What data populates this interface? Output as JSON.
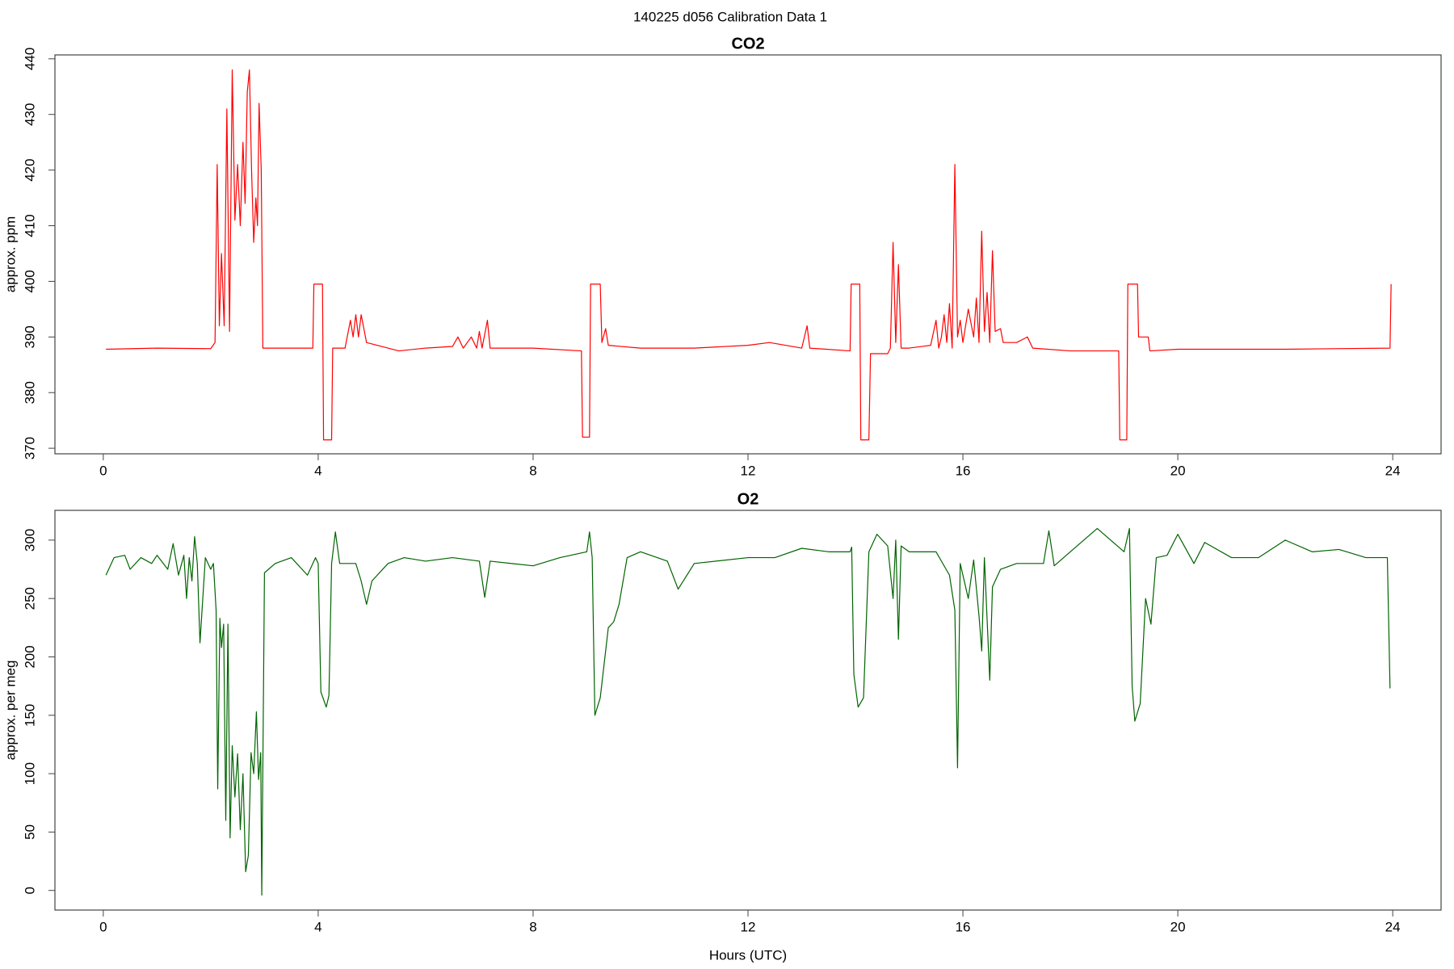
{
  "title": "140225   d056   Calibration Data 1",
  "chart_data": [
    {
      "type": "line",
      "title": "CO2",
      "ylabel": "approx. ppm",
      "color": "#ff0000",
      "xlim": [
        -0.9,
        24.9
      ],
      "ylim": [
        369,
        440.7
      ],
      "xticks": [
        0,
        4,
        8,
        12,
        16,
        20,
        24
      ],
      "yticks": [
        370,
        380,
        390,
        400,
        410,
        420,
        430,
        440
      ],
      "x": [
        0.05,
        1.0,
        2.0,
        2.08,
        2.12,
        2.16,
        2.2,
        2.25,
        2.3,
        2.35,
        2.4,
        2.45,
        2.5,
        2.55,
        2.6,
        2.64,
        2.68,
        2.72,
        2.76,
        2.8,
        2.84,
        2.87,
        2.9,
        2.94,
        2.97,
        3.9,
        3.92,
        4.08,
        4.1,
        4.25,
        4.27,
        4.5,
        4.6,
        4.65,
        4.7,
        4.75,
        4.8,
        4.9,
        5.5,
        6.0,
        6.5,
        6.6,
        6.7,
        6.85,
        6.95,
        7.0,
        7.05,
        7.15,
        7.2,
        8.0,
        8.9,
        8.92,
        9.05,
        9.07,
        9.25,
        9.28,
        9.35,
        9.4,
        10.0,
        11.0,
        12.0,
        12.4,
        13.0,
        13.1,
        13.15,
        13.9,
        13.92,
        14.08,
        14.1,
        14.25,
        14.28,
        14.6,
        14.65,
        14.7,
        14.75,
        14.8,
        14.85,
        15.0,
        15.4,
        15.5,
        15.55,
        15.6,
        15.65,
        15.7,
        15.75,
        15.8,
        15.85,
        15.9,
        15.95,
        16.0,
        16.1,
        16.2,
        16.25,
        16.3,
        16.35,
        16.4,
        16.45,
        16.5,
        16.55,
        16.6,
        16.7,
        16.75,
        17.0,
        17.2,
        17.3,
        18.0,
        18.9,
        18.92,
        19.05,
        19.07,
        19.25,
        19.27,
        19.45,
        19.48,
        20.0,
        22.0,
        23.95,
        23.97
      ],
      "values": [
        387.8,
        388,
        387.9,
        389,
        421,
        392,
        405,
        392,
        431,
        391,
        438,
        411,
        421,
        410,
        425,
        414,
        434,
        438,
        420,
        407,
        415,
        410,
        432,
        420,
        388,
        388,
        399.5,
        399.5,
        371.5,
        371.5,
        388,
        388,
        393,
        390,
        394,
        390,
        394,
        389,
        387.5,
        388,
        388.3,
        390,
        388,
        390,
        388,
        391,
        388,
        393,
        388,
        388,
        387.5,
        372,
        372,
        399.5,
        399.5,
        389,
        391.5,
        388.5,
        388,
        388,
        388.5,
        389,
        388,
        392,
        388,
        387.5,
        399.5,
        399.5,
        371.5,
        371.5,
        387,
        387,
        388,
        407,
        389,
        403,
        388,
        388,
        388.5,
        393,
        388,
        390,
        394,
        389,
        396,
        388,
        421,
        390,
        393,
        389,
        395,
        390,
        397,
        389,
        409,
        391,
        398,
        389,
        405.5,
        391,
        391.5,
        389,
        389,
        390,
        388,
        387.5,
        387.5,
        371.5,
        371.5,
        399.5,
        399.5,
        390,
        390,
        387.5,
        387.8,
        387.8,
        388,
        399.5
      ]
    },
    {
      "type": "line",
      "title": "O2",
      "ylabel": "approx. per meg",
      "xlabel": "Hours (UTC)",
      "color": "#006400",
      "xlim": [
        -0.9,
        24.9
      ],
      "ylim": [
        -16.8,
        325.5
      ],
      "xticks": [
        0,
        4,
        8,
        12,
        16,
        20,
        24
      ],
      "yticks": [
        0,
        50,
        100,
        150,
        200,
        250,
        300
      ],
      "x": [
        0.05,
        0.2,
        0.4,
        0.5,
        0.7,
        0.9,
        1.0,
        1.2,
        1.3,
        1.4,
        1.5,
        1.55,
        1.6,
        1.65,
        1.7,
        1.75,
        1.8,
        1.9,
        2.0,
        2.05,
        2.1,
        2.13,
        2.17,
        2.2,
        2.24,
        2.28,
        2.32,
        2.36,
        2.4,
        2.45,
        2.5,
        2.55,
        2.6,
        2.65,
        2.7,
        2.75,
        2.8,
        2.85,
        2.89,
        2.93,
        2.95,
        3.0,
        3.2,
        3.5,
        3.8,
        3.95,
        4.0,
        4.05,
        4.15,
        4.2,
        4.25,
        4.32,
        4.4,
        4.7,
        4.8,
        4.9,
        5.0,
        5.3,
        5.6,
        6.0,
        6.5,
        7.0,
        7.1,
        7.2,
        8.0,
        8.5,
        9.0,
        9.05,
        9.1,
        9.15,
        9.25,
        9.4,
        9.5,
        9.6,
        9.75,
        10.0,
        10.5,
        10.7,
        11.0,
        12.0,
        12.5,
        13.0,
        13.5,
        13.9,
        13.93,
        13.97,
        14.05,
        14.15,
        14.25,
        14.4,
        14.6,
        14.7,
        14.75,
        14.8,
        14.85,
        15.0,
        15.5,
        15.75,
        15.85,
        15.9,
        15.95,
        16.1,
        16.2,
        16.3,
        16.35,
        16.4,
        16.5,
        16.55,
        16.7,
        17.0,
        17.5,
        17.6,
        17.7,
        18.0,
        18.5,
        19.0,
        19.1,
        19.15,
        19.2,
        19.3,
        19.4,
        19.5,
        19.6,
        19.8,
        20.0,
        20.3,
        20.5,
        21.0,
        21.5,
        22.0,
        22.5,
        23.0,
        23.5,
        23.9,
        23.95
      ],
      "values": [
        270,
        285,
        287,
        275,
        285,
        280,
        287,
        275,
        297,
        270,
        287,
        250,
        285,
        265,
        303,
        280,
        212,
        285,
        275,
        280,
        240,
        87,
        233,
        208,
        228,
        60,
        228,
        45,
        124,
        80,
        117,
        52,
        100,
        16,
        30,
        118,
        100,
        153,
        95,
        118,
        -4,
        272,
        280,
        285,
        270,
        285,
        280,
        170,
        157,
        167,
        280,
        307,
        280,
        280,
        265,
        245,
        265,
        280,
        285,
        282,
        285,
        282,
        251,
        282,
        278,
        285,
        290,
        307,
        285,
        150,
        165,
        225,
        230,
        245,
        285,
        290,
        282,
        258,
        280,
        285,
        285,
        293,
        290,
        290,
        294,
        185,
        157,
        165,
        290,
        305,
        295,
        250,
        300,
        215,
        295,
        290,
        290,
        270,
        240,
        105,
        280,
        250,
        283,
        235,
        205,
        285,
        180,
        260,
        275,
        280,
        280,
        308,
        278,
        290,
        310,
        290,
        310,
        175,
        145,
        160,
        250,
        228,
        285,
        287,
        305,
        280,
        298,
        285,
        285,
        300,
        290,
        292,
        285,
        285,
        173
      ]
    }
  ]
}
